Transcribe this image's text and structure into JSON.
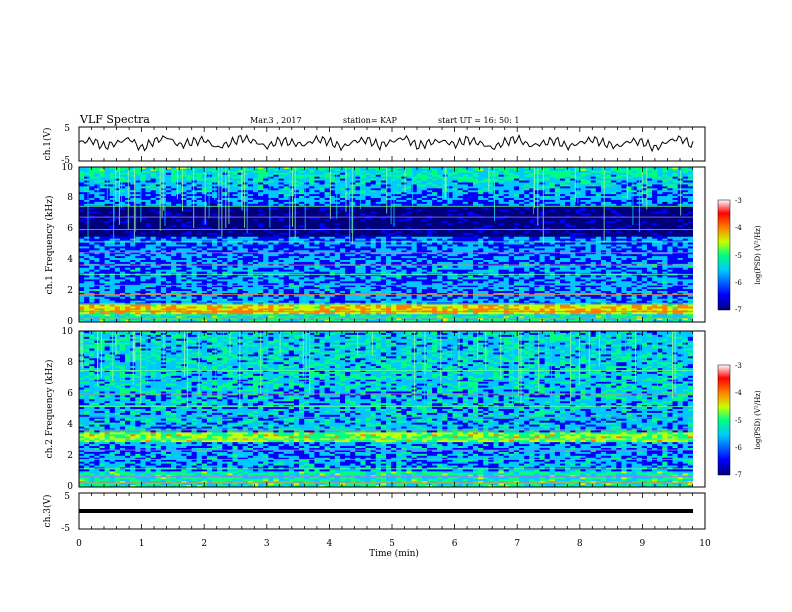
{
  "header": {
    "title": "VLF Spectra",
    "date": "Mar.3 , 2017",
    "station": "station= KAP",
    "start": "start UT = 16: 50: 1"
  },
  "chart_data": [
    {
      "type": "line",
      "panel": "ch1-waveform",
      "ylabel": "ch.1(V)",
      "yticks": [
        "5",
        "-5"
      ],
      "ylim": [
        -5,
        5
      ],
      "xlim": [
        0,
        10
      ],
      "series": [
        {
          "values": [
            0.5,
            1.2,
            -0.8,
            0.3,
            1.8,
            -1.5,
            0.9,
            2.2,
            -0.4,
            0.6,
            1.4,
            -1.2,
            0.2,
            1.9,
            0.8,
            -0.9,
            1.1,
            0.4,
            -0.3,
            1.6,
            0.7,
            -1.1,
            0.9,
            1.3,
            -0.5,
            0.8,
            2.0,
            -0.7,
            0.5,
            1.0,
            -0.2,
            1.4,
            0.3,
            -1.3,
            0.6,
            1.7,
            -0.6,
            0.2,
            1.2,
            -0.9,
            0.4,
            1.5,
            0.1,
            -0.8,
            1.0,
            0.6,
            -1.4,
            0.9,
            1.8,
            -0.5
          ]
        }
      ],
      "color": "#000000"
    },
    {
      "type": "heatmap",
      "panel": "ch1-spectrogram",
      "ylabel": "ch.1 Frequency (kHz)",
      "yticks": [
        "10",
        "8",
        "6",
        "4",
        "2",
        "0"
      ],
      "ylim": [
        0,
        10
      ],
      "xlim": [
        0,
        10.0
      ]
    },
    {
      "type": "heatmap",
      "panel": "ch2-spectrogram",
      "ylabel": "ch.2 Frequency (kHz)",
      "yticks": [
        "10",
        "8",
        "6",
        "4",
        "2",
        "0"
      ],
      "ylim": [
        0,
        10
      ],
      "xlim": [
        0,
        10.0
      ]
    },
    {
      "type": "line",
      "panel": "ch3-waveform",
      "ylabel": "ch.3(V)",
      "yticks": [
        "5",
        "-5"
      ],
      "ylim": [
        -5,
        5
      ],
      "xlim": [
        0,
        10
      ],
      "series": [
        {
          "values": [
            -1.0,
            -1.0
          ]
        }
      ],
      "color": "#000000"
    }
  ],
  "xaxis": {
    "label": "Time (min)",
    "ticks": [
      "0",
      "1",
      "2",
      "3",
      "4",
      "5",
      "6",
      "7",
      "8",
      "9",
      "10"
    ]
  },
  "colorbar": {
    "label": "log(PSD) (V²/Hz)",
    "ticks": [
      "-3",
      "-4",
      "-5",
      "-6",
      "-7"
    ],
    "range": [
      -7,
      -3
    ],
    "colors": [
      "#00007a",
      "#0000ff",
      "#00c8ff",
      "#00ff80",
      "#c8ff00",
      "#ff8000",
      "#ff0000",
      "#ffffff"
    ]
  }
}
